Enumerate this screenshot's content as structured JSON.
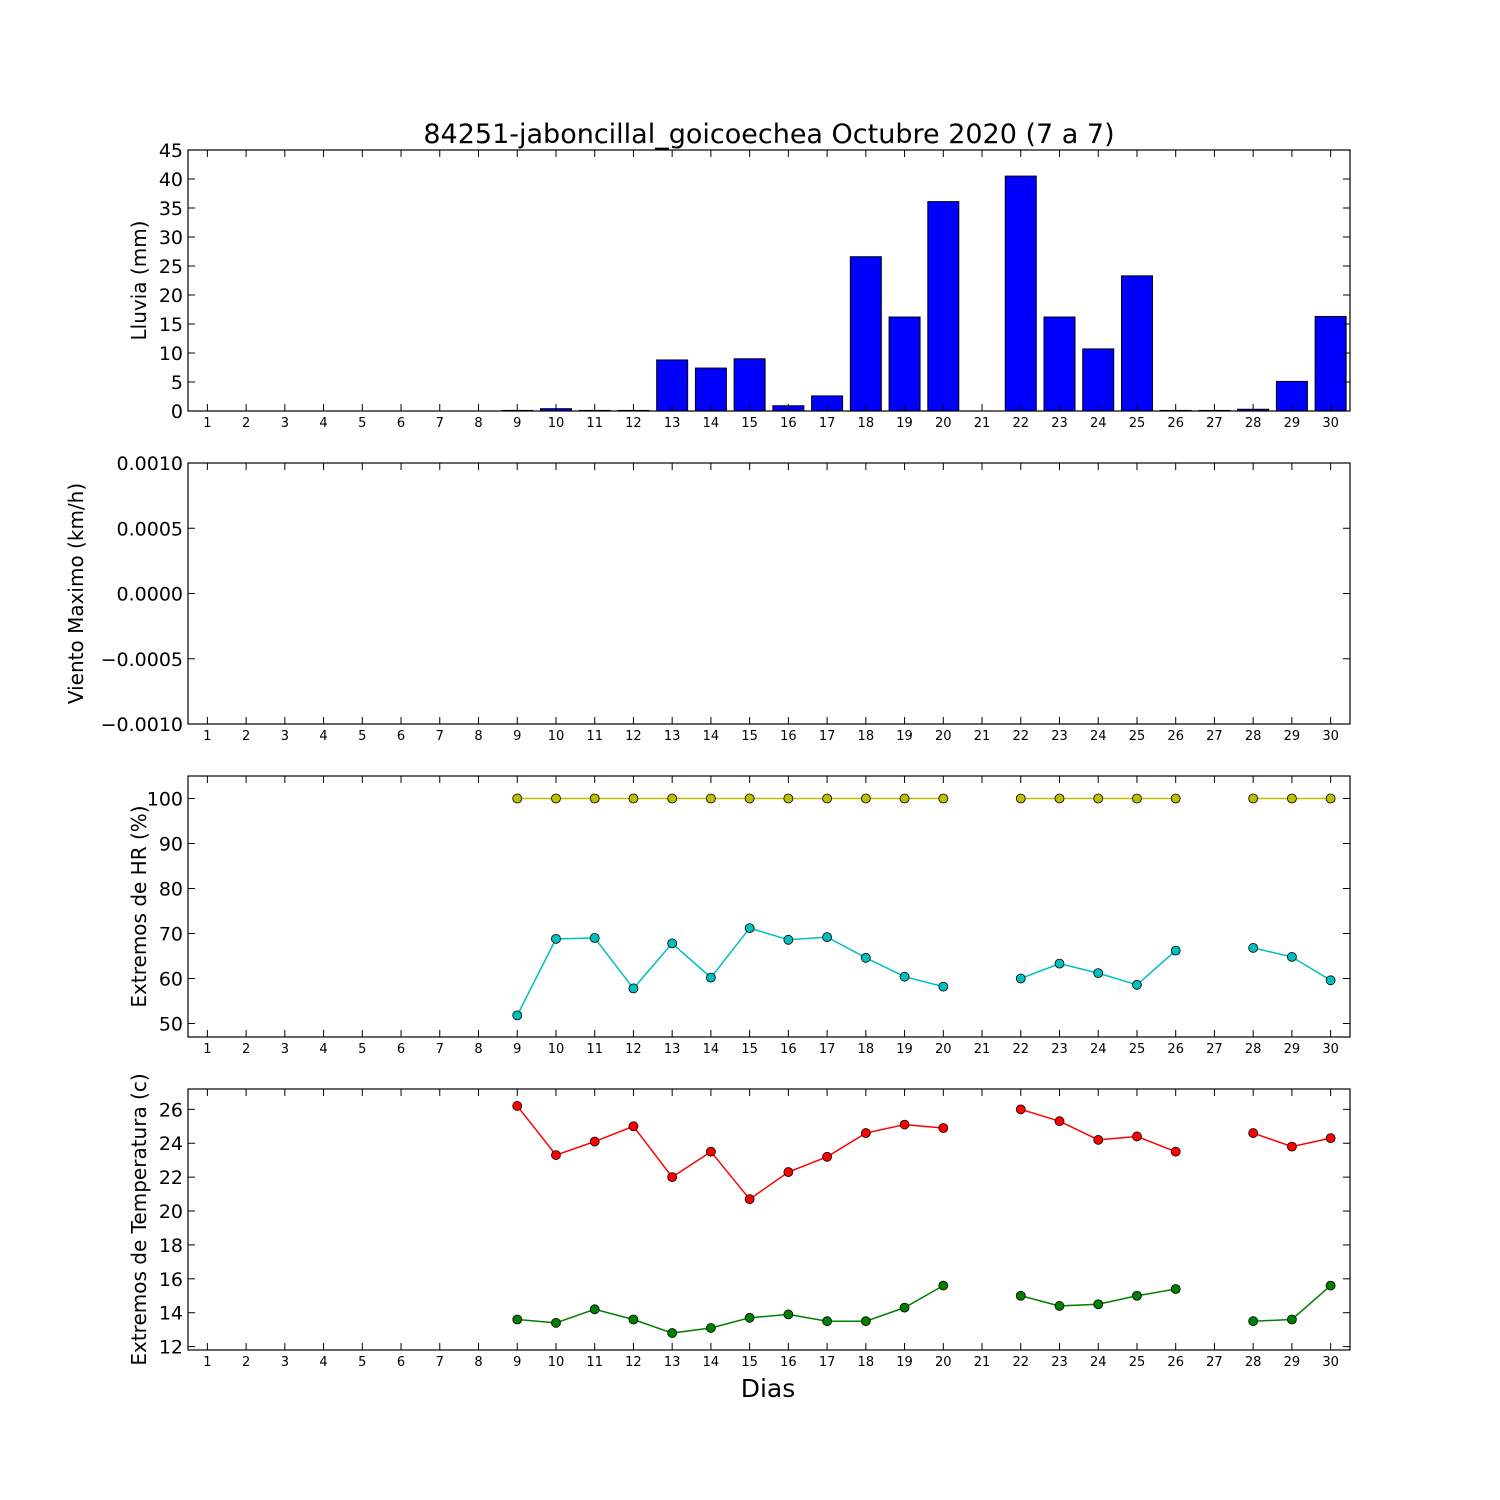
{
  "chart_data": {
    "title": "84251-jaboncillal_goicoechea Octubre 2020  (7 a 7)",
    "xlabel": "Dias",
    "days": [
      1,
      2,
      3,
      4,
      5,
      6,
      7,
      8,
      9,
      10,
      11,
      12,
      13,
      14,
      15,
      16,
      17,
      18,
      19,
      20,
      21,
      22,
      23,
      24,
      25,
      26,
      27,
      28,
      29,
      30
    ],
    "panels": [
      {
        "type": "bar",
        "ylabel": "Lluvia (mm)",
        "ylim": [
          0,
          45
        ],
        "yticks": [
          "0",
          "5",
          "10",
          "15",
          "20",
          "25",
          "30",
          "35",
          "40",
          "45"
        ],
        "series": [
          {
            "color": "#0000ff",
            "values": [
              0,
              0,
              0,
              0,
              0,
              0,
              0,
              0,
              0.1,
              0.4,
              0.1,
              0.1,
              8.8,
              7.4,
              9.0,
              0.9,
              2.6,
              26.6,
              16.2,
              36.1,
              null,
              40.5,
              16.2,
              10.7,
              23.3,
              0.1,
              0.1,
              0.3,
              5.1,
              16.3
            ]
          }
        ]
      },
      {
        "type": "line",
        "ylabel": "Viento Maximo (km/h)",
        "ylim": [
          -0.001,
          0.001
        ],
        "yticks": [
          "−0.0010",
          "−0.0005",
          "0.0000",
          "0.0005",
          "0.0010"
        ],
        "series": []
      },
      {
        "type": "line",
        "ylabel": "Extremos de HR (%)",
        "ylim": [
          47,
          105
        ],
        "yticks": [
          "50",
          "60",
          "70",
          "80",
          "90",
          "100"
        ],
        "series": [
          {
            "color": "#bfbf00",
            "values": [
              null,
              null,
              null,
              null,
              null,
              null,
              null,
              null,
              100,
              100,
              100,
              100,
              100,
              100,
              100,
              100,
              100,
              100,
              100,
              100,
              null,
              100,
              100,
              100,
              100,
              100,
              null,
              100,
              100,
              100
            ]
          },
          {
            "color": "#00bfbf",
            "values": [
              null,
              null,
              null,
              null,
              null,
              null,
              null,
              null,
              51.8,
              68.8,
              69.0,
              57.8,
              67.8,
              60.2,
              71.2,
              68.6,
              69.2,
              64.6,
              60.4,
              58.2,
              null,
              60.0,
              63.3,
              61.2,
              58.6,
              66.2,
              null,
              66.8,
              64.8,
              59.6
            ]
          }
        ]
      },
      {
        "type": "line",
        "ylabel": "Extremos de Temperatura (c)",
        "ylim": [
          11.8,
          27.2
        ],
        "yticks": [
          "12",
          "14",
          "16",
          "18",
          "20",
          "22",
          "24",
          "26"
        ],
        "series": [
          {
            "color": "#ff0000",
            "values": [
              null,
              null,
              null,
              null,
              null,
              null,
              null,
              null,
              26.2,
              23.3,
              24.1,
              25.0,
              22.0,
              23.5,
              20.7,
              22.3,
              23.2,
              24.6,
              25.1,
              24.9,
              null,
              26.0,
              25.3,
              24.2,
              24.4,
              23.5,
              null,
              24.6,
              23.8,
              24.3
            ]
          },
          {
            "color": "#008000",
            "values": [
              null,
              null,
              null,
              null,
              null,
              null,
              null,
              null,
              13.6,
              13.4,
              14.2,
              13.6,
              12.8,
              13.1,
              13.7,
              13.9,
              13.5,
              13.5,
              14.3,
              15.6,
              null,
              15.0,
              14.4,
              14.5,
              15.0,
              15.4,
              null,
              13.5,
              13.6,
              15.6
            ]
          }
        ]
      }
    ]
  }
}
